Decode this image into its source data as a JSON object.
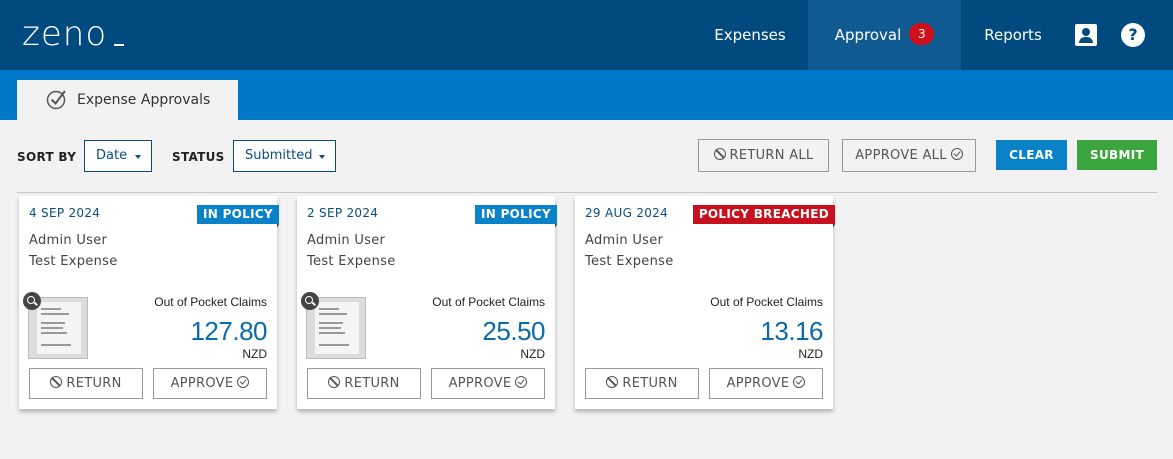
{
  "app": {
    "logo": "zeno"
  },
  "nav": {
    "expenses": "Expenses",
    "approval": "Approval",
    "approval_badge": "3",
    "reports": "Reports",
    "profile_icon": "user-icon",
    "help_icon": "help-icon",
    "help_glyph": "?"
  },
  "tab": {
    "label": "Expense Approvals",
    "icon": "check-circle-icon"
  },
  "toolbar": {
    "sort_label": "SORT BY",
    "sort_value": "Date",
    "status_label": "STATUS",
    "status_value": "Submitted",
    "return_all": "RETURN ALL",
    "approve_all": "APPROVE ALL",
    "clear": "CLEAR",
    "submit": "SUBMIT"
  },
  "colors": {
    "topbar": "#004a80",
    "subbar": "#0078c8",
    "in_policy": "#0a82c8",
    "breached": "#c8101e",
    "submit": "#3aa63d",
    "clear": "#0a82c8"
  },
  "cards": [
    {
      "date": "4 SEP 2024",
      "policy": "IN POLICY",
      "user": "Admin User",
      "description": "Test Expense",
      "category": "Out of Pocket Claims",
      "amount": "127.80",
      "currency": "NZD",
      "return": "RETURN",
      "approve": "APPROVE"
    },
    {
      "date": "2 SEP 2024",
      "policy": "IN POLICY",
      "user": "Admin User",
      "description": "Test Expense",
      "category": "Out of Pocket Claims",
      "amount": "25.50",
      "currency": "NZD",
      "return": "RETURN",
      "approve": "APPROVE"
    },
    {
      "date": "29 AUG 2024",
      "policy": "POLICY BREACHED",
      "user": "Admin User",
      "description": "Test Expense",
      "category": "Out of Pocket Claims",
      "amount": "13.16",
      "currency": "NZD",
      "return": "RETURN",
      "approve": "APPROVE"
    }
  ]
}
